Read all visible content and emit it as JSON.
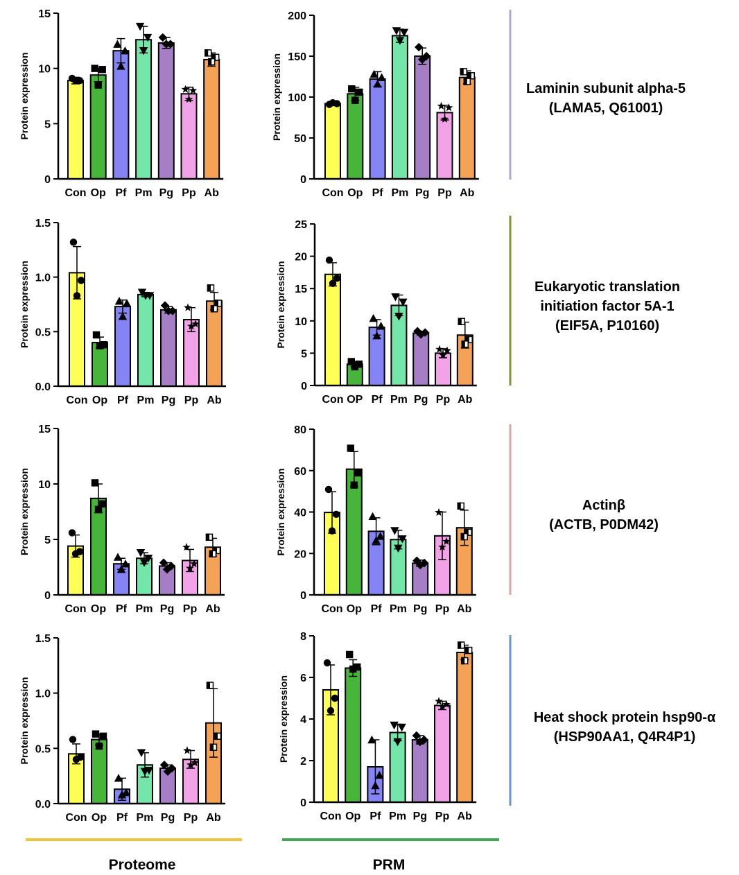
{
  "colors": {
    "bars": [
      "#ffff55",
      "#46b53a",
      "#8484f4",
      "#75e6aa",
      "#a57ec6",
      "#f2a3e8",
      "#f3a256"
    ],
    "proteome_line": "#f2c43b",
    "prm_line": "#43a857",
    "row_lines": [
      "#b3a6cf",
      "#7e953a",
      "#d5a8a4",
      "#6a93cf"
    ]
  },
  "footer": {
    "proteome_label": "Proteome",
    "prm_label": "PRM"
  },
  "protein_titles": [
    [
      "Laminin subunit alpha-5",
      "(LAMA5, Q61001)"
    ],
    [
      "Eukaryotic translation",
      "initiation factor 5A-1",
      "(EIF5A, P10160)"
    ],
    [
      "Actinβ",
      "(ACTB, P0DM42)"
    ],
    [
      "Heat shock protein hsp90-α",
      "(HSP90AA1, Q4R4P1)"
    ]
  ],
  "chart_data": [
    {
      "type": "bar",
      "panel": "Proteome",
      "protein": "LAMA5",
      "categories": [
        "Con",
        "Op",
        "Pf",
        "Pm",
        "Pg",
        "Pp",
        "Ab"
      ],
      "values": [
        8.9,
        9.4,
        11.6,
        12.6,
        12.3,
        7.7,
        10.8
      ],
      "errors": [
        0.3,
        0.6,
        1.1,
        1.2,
        0.5,
        0.6,
        0.6
      ],
      "points": [
        [
          9.1,
          8.9,
          8.9
        ],
        [
          10.0,
          9.9,
          8.5
        ],
        [
          12.2,
          11.6,
          10.2
        ],
        [
          13.8,
          12.8,
          11.6
        ],
        [
          12.8,
          12.2,
          12.2
        ],
        [
          8.1,
          8.0,
          7.2
        ],
        [
          11.4,
          11.0,
          10.6
        ]
      ],
      "title": "",
      "xlabel": "",
      "ylabel": "Protein expression",
      "ylim": [
        0,
        15
      ],
      "yticks": [
        0,
        5,
        10,
        15
      ],
      "ytick_labels": [
        "0",
        "5",
        "10",
        "15"
      ]
    },
    {
      "type": "bar",
      "panel": "PRM",
      "protein": "LAMA5",
      "categories": [
        "Con",
        "Op",
        "Pf",
        "Pm",
        "Pg",
        "Pp",
        "Ab"
      ],
      "values": [
        92,
        104,
        122,
        175,
        150,
        81,
        124
      ],
      "errors": [
        2,
        8,
        9,
        8,
        10,
        9,
        8
      ],
      "points": [
        [
          91,
          92,
          93
        ],
        [
          110,
          106,
          96
        ],
        [
          128,
          124,
          116
        ],
        [
          181,
          179,
          169
        ],
        [
          161,
          150,
          146
        ],
        [
          89,
          87,
          73
        ],
        [
          131,
          126,
          119
        ]
      ],
      "title": "",
      "xlabel": "",
      "ylabel": "Protein expression",
      "ylim": [
        0,
        200
      ],
      "yticks": [
        0,
        50,
        100,
        150,
        200
      ],
      "ytick_labels": [
        "0",
        "50",
        "100",
        "150",
        "200"
      ]
    },
    {
      "type": "bar",
      "panel": "Proteome",
      "protein": "EIF5A",
      "categories": [
        "Con",
        "Op",
        "Pf",
        "Pm",
        "Pg",
        "Pp",
        "Ab"
      ],
      "values": [
        1.04,
        0.4,
        0.73,
        0.84,
        0.7,
        0.61,
        0.78
      ],
      "errors": [
        0.24,
        0.05,
        0.06,
        0.02,
        0.03,
        0.11,
        0.08
      ],
      "points": [
        [
          1.32,
          0.97,
          0.83
        ],
        [
          0.47,
          0.38,
          0.37
        ],
        [
          0.78,
          0.76,
          0.64
        ],
        [
          0.86,
          0.83,
          0.83
        ],
        [
          0.74,
          0.69,
          0.69
        ],
        [
          0.72,
          0.57,
          0.55
        ],
        [
          0.9,
          0.76,
          0.71
        ]
      ],
      "title": "",
      "xlabel": "",
      "ylabel": "Protein expression",
      "ylim": [
        0,
        1.5
      ],
      "yticks": [
        0,
        0.5,
        1.0,
        1.5
      ],
      "ytick_labels": [
        "0.0",
        "0.5",
        "1.0",
        "1.5"
      ]
    },
    {
      "type": "bar",
      "panel": "PRM",
      "protein": "EIF5A",
      "categories": [
        "Con",
        "OP",
        "Pf",
        "Pm",
        "Pg",
        "Pp",
        "Ab"
      ],
      "values": [
        17.2,
        3.3,
        9.0,
        12.4,
        8.1,
        5.0,
        7.8
      ],
      "errors": [
        1.8,
        0.4,
        1.2,
        1.6,
        0.3,
        0.7,
        2.0
      ],
      "points": [
        [
          19.4,
          16.6,
          15.8
        ],
        [
          3.7,
          3.3,
          2.9
        ],
        [
          10.4,
          9.2,
          7.7
        ],
        [
          13.7,
          12.9,
          10.7
        ],
        [
          8.4,
          8.2,
          7.9
        ],
        [
          5.6,
          5.4,
          4.7
        ],
        [
          9.9,
          7.1,
          6.4
        ]
      ],
      "title": "",
      "xlabel": "",
      "ylabel": "Protein expression",
      "ylim": [
        0,
        25
      ],
      "yticks": [
        0,
        5,
        10,
        15,
        20,
        25
      ],
      "ytick_labels": [
        "0",
        "5",
        "10",
        "15",
        "20",
        "25"
      ]
    },
    {
      "type": "bar",
      "panel": "Proteome",
      "protein": "ACTB",
      "categories": [
        "Con",
        "Op",
        "Pf",
        "Pm",
        "Pg",
        "Pp",
        "Ab"
      ],
      "values": [
        4.4,
        8.7,
        2.8,
        3.3,
        2.6,
        3.1,
        4.3
      ],
      "errors": [
        1.0,
        1.3,
        0.5,
        0.5,
        0.3,
        1.0,
        0.8
      ],
      "points": [
        [
          5.6,
          3.9,
          3.7
        ],
        [
          10.1,
          8.2,
          7.7
        ],
        [
          3.4,
          2.8,
          2.3
        ],
        [
          3.8,
          3.3,
          2.9
        ],
        [
          2.9,
          2.6,
          2.3
        ],
        [
          4.3,
          2.8,
          2.4
        ],
        [
          5.2,
          4.0,
          3.7
        ]
      ],
      "title": "",
      "xlabel": "",
      "ylabel": "Protein expression",
      "ylim": [
        0,
        15
      ],
      "yticks": [
        0,
        5,
        10,
        15
      ],
      "ytick_labels": [
        "0",
        "5",
        "10",
        "15"
      ]
    },
    {
      "type": "bar",
      "panel": "PRM",
      "protein": "ACTB",
      "categories": [
        "Con",
        "Op",
        "Pf",
        "Pm",
        "Pg",
        "Pp",
        "Ab"
      ],
      "values": [
        39.8,
        60.7,
        30.7,
        26.7,
        15.3,
        28.5,
        32.4
      ],
      "errors": [
        10.0,
        8.5,
        6.5,
        4.5,
        1.5,
        11.5,
        8.5
      ],
      "points": [
        [
          50.9,
          38.9,
          30.9
        ],
        [
          70.8,
          58.9,
          53.0
        ],
        [
          37.9,
          28.3,
          26.3
        ],
        [
          31.0,
          27.0,
          22.5
        ],
        [
          16.5,
          15.4,
          14.4
        ],
        [
          39.8,
          25.8,
          23.1
        ],
        [
          42.9,
          30.2,
          28.1
        ]
      ],
      "title": "",
      "xlabel": "",
      "ylabel": "Protein expression",
      "ylim": [
        0,
        80
      ],
      "yticks": [
        0,
        20,
        40,
        60,
        80
      ],
      "ytick_labels": [
        "0",
        "20",
        "40",
        "60",
        "80"
      ]
    },
    {
      "type": "bar",
      "panel": "Proteome",
      "protein": "HSP90AA1",
      "categories": [
        "Con",
        "Op",
        "Pf",
        "Pm",
        "Pg",
        "Pp",
        "Ab"
      ],
      "values": [
        0.45,
        0.58,
        0.13,
        0.35,
        0.32,
        0.4,
        0.73
      ],
      "errors": [
        0.09,
        0.05,
        0.1,
        0.11,
        0.03,
        0.08,
        0.31
      ],
      "points": [
        [
          0.58,
          0.42,
          0.4
        ],
        [
          0.63,
          0.61,
          0.52
        ],
        [
          0.23,
          0.1,
          0.08
        ],
        [
          0.46,
          0.3,
          0.29
        ],
        [
          0.35,
          0.32,
          0.29
        ],
        [
          0.48,
          0.37,
          0.35
        ],
        [
          1.07,
          0.61,
          0.51
        ]
      ],
      "title": "",
      "xlabel": "",
      "ylabel": "Protein expression",
      "ylim": [
        0,
        1.5
      ],
      "yticks": [
        0,
        0.5,
        1.0,
        1.5
      ],
      "ytick_labels": [
        "0.0",
        "0.5",
        "1.0",
        "1.5"
      ]
    },
    {
      "type": "bar",
      "panel": "PRM",
      "protein": "HSP90AA1",
      "categories": [
        "Con",
        "Op",
        "Pf",
        "Pm",
        "Pg",
        "Pp",
        "Ab"
      ],
      "values": [
        5.4,
        6.45,
        1.7,
        3.35,
        3.0,
        4.65,
        7.2
      ],
      "errors": [
        1.2,
        0.4,
        1.3,
        0.4,
        0.2,
        0.2,
        0.35
      ],
      "points": [
        [
          6.7,
          5.0,
          4.4
        ],
        [
          7.1,
          6.5,
          6.4
        ],
        [
          3.0,
          1.3,
          0.8
        ],
        [
          3.7,
          3.6,
          2.9
        ],
        [
          3.2,
          3.0,
          2.9
        ],
        [
          4.85,
          4.7,
          4.6
        ],
        [
          7.55,
          7.3,
          6.8
        ]
      ],
      "title": "",
      "xlabel": "",
      "ylabel": "Protein expression",
      "ylim": [
        0,
        8
      ],
      "yticks": [
        0,
        2,
        4,
        6,
        8
      ],
      "ytick_labels": [
        "0",
        "2",
        "4",
        "6",
        "8"
      ]
    }
  ]
}
